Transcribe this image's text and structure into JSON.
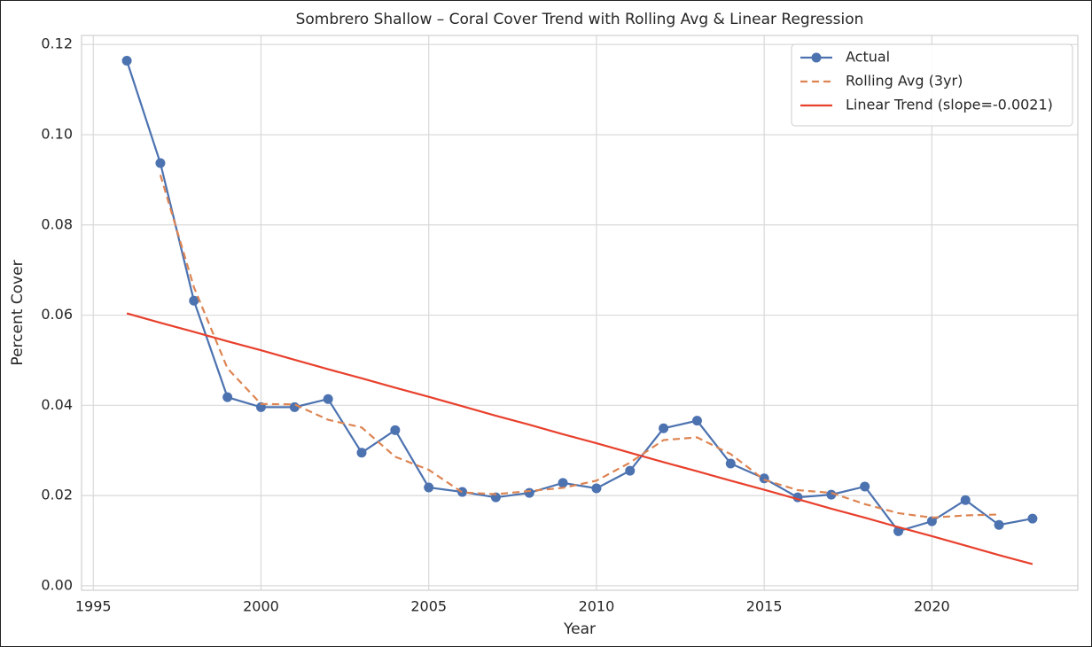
{
  "chart_data": {
    "type": "line",
    "title": "Sombrero Shallow – Coral Cover Trend with Rolling Avg & Linear Regression",
    "x_label": "Year",
    "y_label": "Percent Cover",
    "x": [
      1996,
      1997,
      1998,
      1999,
      2000,
      2001,
      2002,
      2003,
      2004,
      2005,
      2006,
      2007,
      2008,
      2009,
      2010,
      2011,
      2012,
      2013,
      2014,
      2015,
      2016,
      2017,
      2018,
      2019,
      2020,
      2021,
      2022,
      2023
    ],
    "series": [
      {
        "name": "Actual",
        "color": "#4c72b0",
        "style": "solid",
        "marker": true,
        "values": [
          0.1164,
          0.0937,
          0.0632,
          0.0418,
          0.0396,
          0.0396,
          0.0414,
          0.0295,
          0.0345,
          0.0218,
          0.0208,
          0.0196,
          0.0206,
          0.0228,
          0.0216,
          0.0255,
          0.0349,
          0.0366,
          0.0271,
          0.0238,
          0.0196,
          0.0202,
          0.022,
          0.0121,
          0.0143,
          0.019,
          0.0135,
          0.0149
        ]
      },
      {
        "name": "Rolling Avg (3yr)",
        "color": "#dd8452",
        "style": "dashed",
        "marker": false,
        "values": [
          null,
          0.0911,
          0.0662,
          0.0482,
          0.0403,
          0.0402,
          0.0368,
          0.0351,
          0.0286,
          0.0257,
          0.0207,
          0.0203,
          0.021,
          0.0217,
          0.0233,
          0.0273,
          0.0323,
          0.0329,
          0.0292,
          0.0235,
          0.0212,
          0.0206,
          0.0181,
          0.0161,
          0.0151,
          0.0156,
          0.0158,
          null
        ]
      },
      {
        "name": "Linear Trend (slope=-0.0021)",
        "color": "#e8402c",
        "style": "solid",
        "marker": false,
        "values": [
          0.0604,
          0.0583,
          0.0563,
          0.0542,
          0.0522,
          0.0501,
          0.048,
          0.046,
          0.0439,
          0.0419,
          0.0398,
          0.0377,
          0.0357,
          0.0336,
          0.0316,
          0.0295,
          0.0274,
          0.0254,
          0.0233,
          0.0213,
          0.0192,
          0.0171,
          0.0151,
          0.013,
          0.011,
          0.0089,
          0.0068,
          0.0048
        ]
      }
    ],
    "xlim": [
      1994.65,
      2024.35
    ],
    "xticks": [
      1995,
      2000,
      2005,
      2010,
      2015,
      2020
    ],
    "ylim": [
      -0.001,
      0.122
    ],
    "yticks": [
      {
        "value": 0,
        "label": "0.00"
      },
      {
        "value": 0.02,
        "label": "0.02"
      },
      {
        "value": 0.04,
        "label": "0.04"
      },
      {
        "value": 0.06,
        "label": "0.06"
      },
      {
        "value": 0.08,
        "label": "0.08"
      },
      {
        "value": 0.1,
        "label": "0.10"
      },
      {
        "value": 0.12,
        "label": "0.12"
      }
    ],
    "grid": true,
    "legend": "upper right"
  }
}
